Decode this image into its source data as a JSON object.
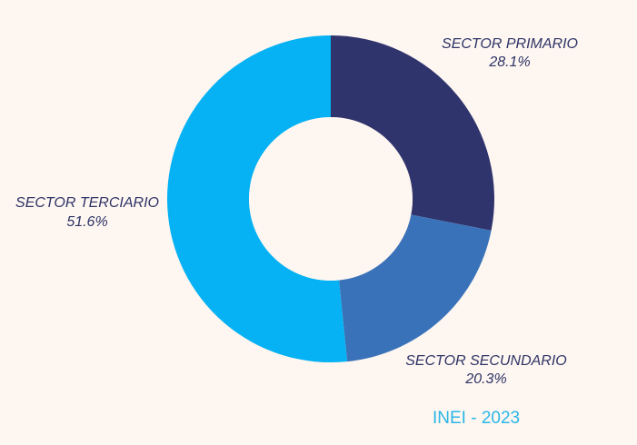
{
  "chart_data": {
    "type": "pie",
    "donut": true,
    "categories": [
      "SECTOR PRIMARIO",
      "SECTOR SECUNDARIO",
      "SECTOR TERCIARIO"
    ],
    "values": [
      28.1,
      20.3,
      51.6
    ],
    "value_labels": [
      "28.1%",
      "20.3%",
      "51.6%"
    ],
    "colors": [
      "#30346c",
      "#3a72b9",
      "#06b2f3"
    ],
    "legend": "none"
  },
  "source_note": "INEI - 2023",
  "colors": {
    "background": "#fdf6f1",
    "label_text": "#2f3466",
    "source_text": "#2bb7e6"
  }
}
